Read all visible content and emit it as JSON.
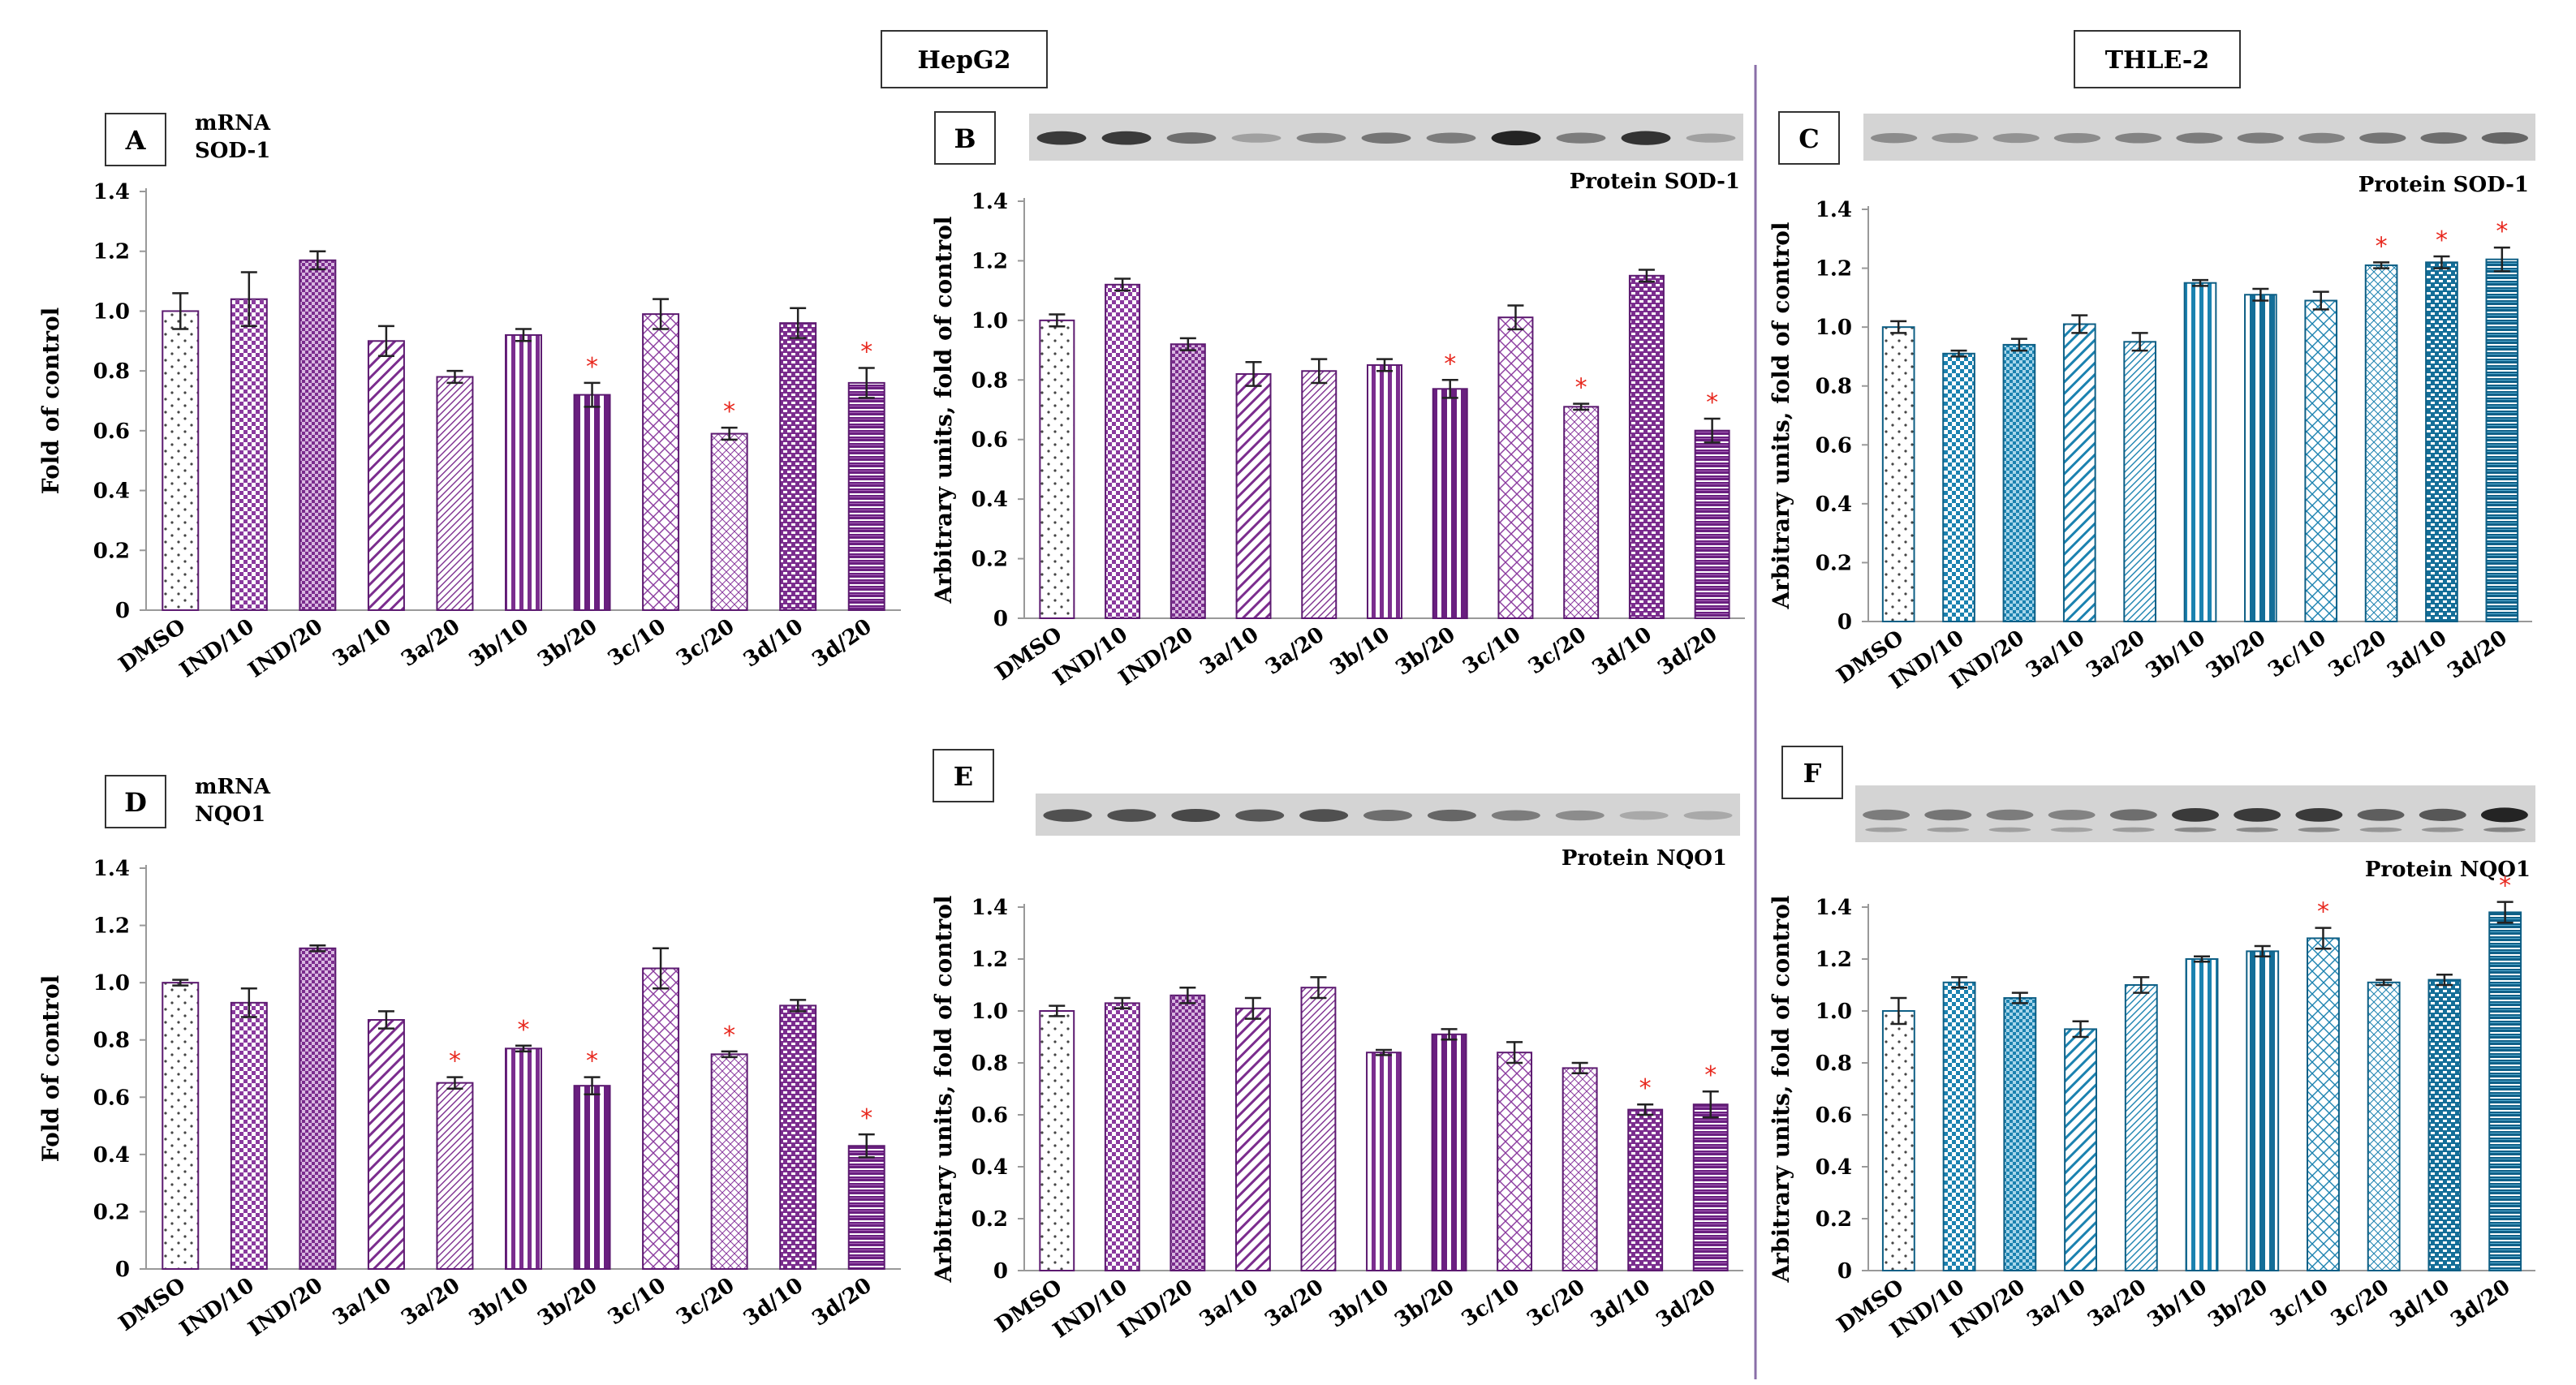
{
  "header": {
    "left": "HepG2",
    "right": "THLE-2"
  },
  "colors": {
    "purple": "#7b2d8e",
    "blue": "#1b82b0",
    "asterisk": "#e8281e",
    "divider": "#8a6fa8"
  },
  "chart_data": [
    {
      "id": "A",
      "type": "bar",
      "title": "mRNA\nSOD-1",
      "cell_line": "HepG2",
      "ylabel": "Fold of control",
      "ylim": [
        0,
        1.4
      ],
      "yticks": [
        "0",
        "0.2",
        "0.4",
        "0.6",
        "0.8",
        "1.0",
        "1.2",
        "1.4"
      ],
      "categories": [
        "DMSO",
        "IND/10",
        "IND/20",
        "3a/10",
        "3a/20",
        "3b/10",
        "3b/20",
        "3c/10",
        "3c/20",
        "3d/10",
        "3d/20"
      ],
      "values": [
        1.0,
        1.04,
        1.17,
        0.9,
        0.78,
        0.92,
        0.72,
        0.99,
        0.59,
        0.96,
        0.76
      ],
      "errors": [
        0.06,
        0.09,
        0.03,
        0.05,
        0.02,
        0.02,
        0.04,
        0.05,
        0.02,
        0.05,
        0.05
      ],
      "significant": [
        false,
        false,
        false,
        false,
        false,
        false,
        true,
        false,
        true,
        false,
        true
      ],
      "blot": null
    },
    {
      "id": "B",
      "type": "bar",
      "title": "Protein SOD-1",
      "cell_line": "HepG2",
      "ylabel": "Arbitrary units, fold of control",
      "ylim": [
        0,
        1.4
      ],
      "yticks": [
        "0",
        "0.2",
        "0.4",
        "0.6",
        "0.8",
        "1.0",
        "1.2",
        "1.4"
      ],
      "categories": [
        "DMSO",
        "IND/10",
        "IND/20",
        "3a/10",
        "3a/20",
        "3b/10",
        "3b/20",
        "3c/10",
        "3c/20",
        "3d/10",
        "3d/20"
      ],
      "values": [
        1.0,
        1.12,
        0.92,
        0.82,
        0.83,
        0.85,
        0.77,
        1.01,
        0.71,
        1.15,
        0.63
      ],
      "errors": [
        0.02,
        0.02,
        0.02,
        0.04,
        0.04,
        0.02,
        0.03,
        0.04,
        0.01,
        0.02,
        0.04
      ],
      "significant": [
        false,
        false,
        false,
        false,
        false,
        false,
        true,
        false,
        true,
        false,
        true
      ],
      "blot": {
        "bands": [
          0.85,
          0.85,
          0.5,
          0.15,
          0.35,
          0.45,
          0.4,
          1.0,
          0.4,
          0.9,
          0.15
        ],
        "second": false
      }
    },
    {
      "id": "C",
      "type": "bar",
      "title": "Protein SOD-1",
      "cell_line": "THLE-2",
      "ylabel": "Arbitrary units, fold of control",
      "ylim": [
        0,
        1.4
      ],
      "yticks": [
        "0",
        "0.2",
        "0.4",
        "0.6",
        "0.8",
        "1.0",
        "1.2",
        "1.4"
      ],
      "categories": [
        "DMSO",
        "IND/10",
        "IND/20",
        "3a/10",
        "3a/20",
        "3b/10",
        "3b/20",
        "3c/10",
        "3c/20",
        "3d/10",
        "3d/20"
      ],
      "values": [
        1.0,
        0.91,
        0.94,
        1.01,
        0.95,
        1.15,
        1.11,
        1.09,
        1.21,
        1.22,
        1.23
      ],
      "errors": [
        0.02,
        0.01,
        0.02,
        0.03,
        0.03,
        0.01,
        0.02,
        0.03,
        0.01,
        0.02,
        0.04
      ],
      "significant": [
        false,
        false,
        false,
        false,
        false,
        false,
        false,
        false,
        true,
        true,
        true
      ],
      "blot": {
        "bands": [
          0.3,
          0.25,
          0.25,
          0.3,
          0.35,
          0.4,
          0.4,
          0.35,
          0.45,
          0.5,
          0.55
        ],
        "second": false
      }
    },
    {
      "id": "D",
      "type": "bar",
      "title": "mRNA\nNQO1",
      "cell_line": "HepG2",
      "ylabel": "Fold of control",
      "ylim": [
        0,
        1.4
      ],
      "yticks": [
        "0",
        "0.2",
        "0.4",
        "0.6",
        "0.8",
        "1.0",
        "1.2",
        "1.4"
      ],
      "categories": [
        "DMSO",
        "IND/10",
        "IND/20",
        "3a/10",
        "3a/20",
        "3b/10",
        "3b/20",
        "3c/10",
        "3c/20",
        "3d/10",
        "3d/20"
      ],
      "values": [
        1.0,
        0.93,
        1.12,
        0.87,
        0.65,
        0.77,
        0.64,
        1.05,
        0.75,
        0.92,
        0.43
      ],
      "errors": [
        0.01,
        0.05,
        0.01,
        0.03,
        0.02,
        0.01,
        0.03,
        0.07,
        0.01,
        0.02,
        0.04
      ],
      "significant": [
        false,
        false,
        false,
        false,
        true,
        true,
        true,
        false,
        true,
        false,
        true
      ],
      "blot": null
    },
    {
      "id": "E",
      "type": "bar",
      "title": "Protein NQO1",
      "cell_line": "HepG2",
      "ylabel": "Arbitrary units, fold of control",
      "ylim": [
        0,
        1.4
      ],
      "yticks": [
        "0",
        "0.2",
        "0.4",
        "0.6",
        "0.8",
        "1.0",
        "1.2",
        "1.4"
      ],
      "categories": [
        "DMSO",
        "IND/10",
        "IND/20",
        "3a/10",
        "3a/20",
        "3b/10",
        "3b/20",
        "3c/10",
        "3c/20",
        "3d/10",
        "3d/20"
      ],
      "values": [
        1.0,
        1.03,
        1.06,
        1.01,
        1.09,
        0.84,
        0.91,
        0.84,
        0.78,
        0.62,
        0.64
      ],
      "errors": [
        0.02,
        0.02,
        0.03,
        0.04,
        0.04,
        0.01,
        0.02,
        0.04,
        0.02,
        0.02,
        0.05
      ],
      "significant": [
        false,
        false,
        false,
        false,
        false,
        false,
        false,
        false,
        false,
        true,
        true
      ],
      "blot": {
        "bands": [
          0.7,
          0.7,
          0.75,
          0.65,
          0.7,
          0.5,
          0.55,
          0.4,
          0.3,
          0.1,
          0.1
        ],
        "second": false
      }
    },
    {
      "id": "F",
      "type": "bar",
      "title": "Protein NQO1",
      "cell_line": "THLE-2",
      "ylabel": "Arbitrary units, fold of control",
      "ylim": [
        0,
        1.4
      ],
      "yticks": [
        "0",
        "0.2",
        "0.4",
        "0.6",
        "0.8",
        "1.0",
        "1.2",
        "1.4"
      ],
      "categories": [
        "DMSO",
        "IND/10",
        "IND/20",
        "3a/10",
        "3a/20",
        "3b/10",
        "3b/20",
        "3c/10",
        "3c/20",
        "3d/10",
        "3d/20"
      ],
      "values": [
        1.0,
        1.11,
        1.05,
        0.93,
        1.1,
        1.2,
        1.23,
        1.28,
        1.11,
        1.12,
        1.38
      ],
      "errors": [
        0.05,
        0.02,
        0.02,
        0.03,
        0.03,
        0.01,
        0.02,
        0.04,
        0.01,
        0.02,
        0.04
      ],
      "significant": [
        false,
        false,
        false,
        false,
        false,
        false,
        false,
        true,
        false,
        false,
        true
      ],
      "blot": {
        "bands": [
          0.4,
          0.45,
          0.4,
          0.35,
          0.5,
          0.85,
          0.85,
          0.85,
          0.6,
          0.65,
          1.0
        ],
        "second": true
      }
    }
  ]
}
